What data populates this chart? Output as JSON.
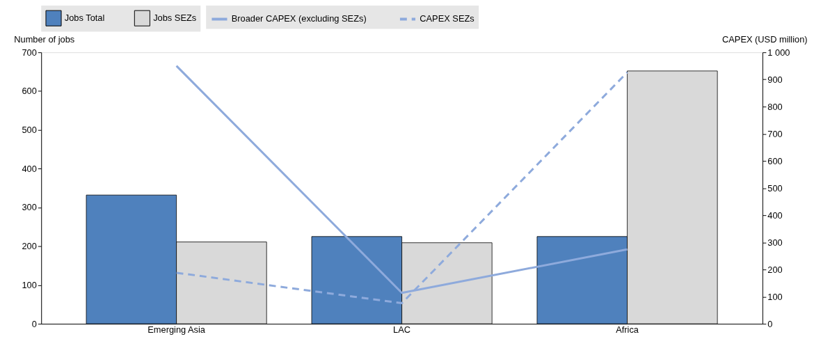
{
  "chart_data": {
    "type": "bar",
    "categories": [
      "Emerging Asia",
      "LAC",
      "Africa"
    ],
    "series": [
      {
        "name": "Jobs Total",
        "color": "#4f81bd",
        "values": [
          332,
          225,
          225
        ]
      },
      {
        "name": "Jobs SEZs",
        "color": "#d9d9d9",
        "values": [
          211,
          209,
          652
        ]
      },
      {
        "name": "Broader CAPEX (excluding SEZs)",
        "type": "line",
        "axis": "y2",
        "line_style": "solid",
        "color": "#8eaadc",
        "values": [
          950,
          114,
          274
        ]
      },
      {
        "name": "CAPEX SEZs",
        "type": "line",
        "axis": "y2",
        "line_style": "dashed",
        "color": "#8eaadc",
        "values": [
          188,
          76,
          926
        ]
      }
    ],
    "ylabel": "Number of jobs",
    "y2label": "CAPEX (USD million)",
    "ylim": [
      0,
      700
    ],
    "yticks": [
      0,
      100,
      200,
      300,
      400,
      500,
      600,
      700
    ],
    "y2lim": [
      0,
      1000
    ],
    "y2ticks": [
      0,
      100,
      200,
      300,
      400,
      500,
      600,
      700,
      800,
      900,
      {
        "value": 1000,
        "label": "1 000"
      }
    ],
    "legend": "top"
  }
}
